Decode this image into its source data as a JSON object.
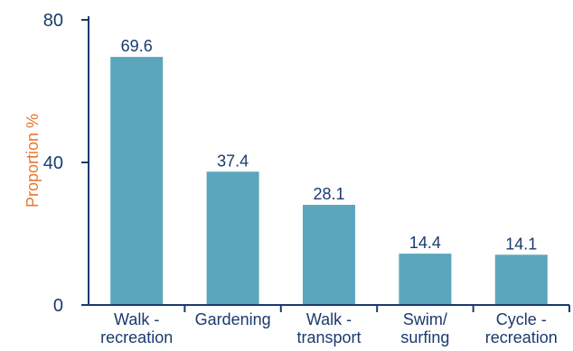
{
  "chart_data": {
    "type": "bar",
    "categories": [
      [
        "Walk -",
        "recreation"
      ],
      [
        "Gardening"
      ],
      [
        "Walk -",
        "transport"
      ],
      [
        "Swim/",
        "surfing"
      ],
      [
        "Cycle -",
        "recreation"
      ]
    ],
    "values": [
      69.6,
      37.4,
      28.1,
      14.4,
      14.1
    ],
    "data_labels": [
      "69.6",
      "37.4",
      "28.1",
      "14.4",
      "14.1"
    ],
    "ylabel": "Proportion %",
    "ylim": [
      0,
      80
    ],
    "yticks": [
      0,
      40,
      80
    ],
    "grid": false,
    "colors": {
      "bar": "#5ba6bd",
      "axis": "#1a3a6e",
      "text": "#1a3a6e",
      "ylabel": "#e8772e"
    }
  }
}
